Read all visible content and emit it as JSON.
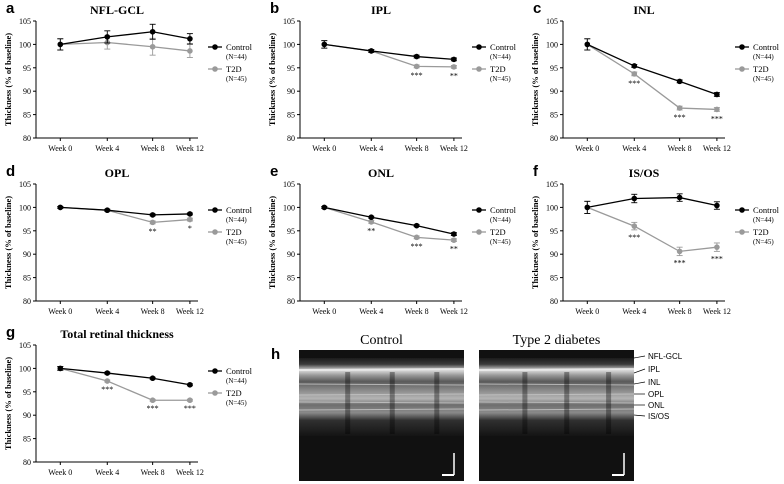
{
  "colors": {
    "control": "#000000",
    "t2d": "#9a9a9a",
    "axis": "#000000"
  },
  "chart_data": [
    {
      "panel": "a",
      "type": "line",
      "title": "NFL-GCL",
      "xlabel": "",
      "ylabel": "Thickness (% of baseline)",
      "categories": [
        "Week 0",
        "Week 4",
        "Week 8",
        "Week 12"
      ],
      "ylim": [
        80,
        105
      ],
      "yticks": [
        80,
        85,
        90,
        95,
        100,
        105
      ],
      "series": [
        {
          "name": "Control",
          "n_label": "(N=44)",
          "values": [
            100,
            101.6,
            102.7,
            101.2
          ],
          "errors": [
            1.2,
            1.3,
            1.6,
            1.1
          ]
        },
        {
          "name": "T2D",
          "n_label": "(N=45)",
          "values": [
            100,
            100.4,
            99.5,
            98.6
          ],
          "errors": [
            1.2,
            1.4,
            1.8,
            1.4
          ]
        }
      ],
      "significance": [
        "",
        "",
        "",
        ""
      ]
    },
    {
      "panel": "b",
      "type": "line",
      "title": "IPL",
      "xlabel": "",
      "ylabel": "Thickness (% of baseline)",
      "categories": [
        "Week 0",
        "Week 4",
        "Week 8",
        "Week 12"
      ],
      "ylim": [
        80,
        105
      ],
      "yticks": [
        80,
        85,
        90,
        95,
        100,
        105
      ],
      "series": [
        {
          "name": "Control",
          "n_label": "(N=44)",
          "values": [
            100,
            98.6,
            97.4,
            96.8
          ],
          "errors": [
            0.8,
            0.3,
            0.3,
            0.3
          ]
        },
        {
          "name": "T2D",
          "n_label": "(N=45)",
          "values": [
            100,
            98.6,
            95.3,
            95.2
          ],
          "errors": [
            0.8,
            0.3,
            0.3,
            0.3
          ]
        }
      ],
      "significance": [
        "",
        "",
        "***",
        "**"
      ]
    },
    {
      "panel": "c",
      "type": "line",
      "title": "INL",
      "xlabel": "",
      "ylabel": "Thickness (% of baseline)",
      "categories": [
        "Week 0",
        "Week 4",
        "Week 8",
        "Week 12"
      ],
      "ylim": [
        80,
        105
      ],
      "yticks": [
        80,
        85,
        90,
        95,
        100,
        105
      ],
      "series": [
        {
          "name": "Control",
          "n_label": "(N=44)",
          "values": [
            100,
            95.4,
            92.1,
            89.3
          ],
          "errors": [
            1.2,
            0.3,
            0.3,
            0.4
          ]
        },
        {
          "name": "T2D",
          "n_label": "(N=45)",
          "values": [
            100,
            93.7,
            86.4,
            86.1
          ],
          "errors": [
            1.2,
            0.4,
            0.4,
            0.4
          ]
        }
      ],
      "significance": [
        "",
        "***",
        "***",
        "***"
      ]
    },
    {
      "panel": "d",
      "type": "line",
      "title": "OPL",
      "xlabel": "",
      "ylabel": "Thickness (% of baseline)",
      "categories": [
        "Week 0",
        "Week 4",
        "Week 8",
        "Week 12"
      ],
      "ylim": [
        80,
        105
      ],
      "yticks": [
        80,
        85,
        90,
        95,
        100,
        105
      ],
      "series": [
        {
          "name": "Control",
          "n_label": "(N=44)",
          "values": [
            100,
            99.4,
            98.4,
            98.6
          ],
          "errors": [
            0.2,
            0.2,
            0.2,
            0.2
          ]
        },
        {
          "name": "T2D",
          "n_label": "(N=45)",
          "values": [
            100,
            99.4,
            96.8,
            97.4
          ],
          "errors": [
            0.2,
            0.2,
            0.3,
            0.3
          ]
        }
      ],
      "significance": [
        "",
        "",
        "**",
        "*"
      ]
    },
    {
      "panel": "e",
      "type": "line",
      "title": "ONL",
      "xlabel": "",
      "ylabel": "Thickness (% of baseline)",
      "categories": [
        "Week 0",
        "Week 4",
        "Week 8",
        "Week 12"
      ],
      "ylim": [
        80,
        105
      ],
      "yticks": [
        80,
        85,
        90,
        95,
        100,
        105
      ],
      "series": [
        {
          "name": "Control",
          "n_label": "(N=44)",
          "values": [
            100,
            97.9,
            96.1,
            94.3
          ],
          "errors": [
            0.2,
            0.2,
            0.2,
            0.3
          ]
        },
        {
          "name": "T2D",
          "n_label": "(N=45)",
          "values": [
            100,
            96.9,
            93.6,
            93.0
          ],
          "errors": [
            0.2,
            0.3,
            0.3,
            0.3
          ]
        }
      ],
      "significance": [
        "",
        "**",
        "***",
        "**"
      ]
    },
    {
      "panel": "f",
      "type": "line",
      "title": "IS/OS",
      "xlabel": "",
      "ylabel": "Thickness (% of baseline)",
      "categories": [
        "Week 0",
        "Week 4",
        "Week 8",
        "Week 12"
      ],
      "ylim": [
        80,
        105
      ],
      "yticks": [
        80,
        85,
        90,
        95,
        100,
        105
      ],
      "series": [
        {
          "name": "Control",
          "n_label": "(N=44)",
          "values": [
            100,
            101.9,
            102.1,
            100.4
          ],
          "errors": [
            1.3,
            0.9,
            0.8,
            0.8
          ]
        },
        {
          "name": "T2D",
          "n_label": "(N=45)",
          "values": [
            100,
            96.0,
            90.6,
            91.5
          ],
          "errors": [
            1.3,
            0.8,
            0.9,
            0.9
          ]
        }
      ],
      "significance": [
        "",
        "***",
        "***",
        "***"
      ]
    },
    {
      "panel": "g",
      "type": "line",
      "title": "Total retinal thickness",
      "xlabel": "",
      "ylabel": "Thickness (% of baseline)",
      "categories": [
        "Week 0",
        "Week 4",
        "Week 8",
        "Week 12"
      ],
      "ylim": [
        80,
        105
      ],
      "yticks": [
        80,
        85,
        90,
        95,
        100,
        105
      ],
      "series": [
        {
          "name": "Control",
          "n_label": "(N=44)",
          "values": [
            100,
            99.0,
            97.9,
            96.5
          ],
          "errors": [
            0.4,
            0.2,
            0.2,
            0.2
          ]
        },
        {
          "name": "T2D",
          "n_label": "(N=45)",
          "values": [
            100,
            97.3,
            93.2,
            93.2
          ],
          "errors": [
            0.4,
            0.2,
            0.2,
            0.2
          ]
        }
      ],
      "significance": [
        "",
        "***",
        "***",
        "***"
      ]
    }
  ],
  "oct_panel": {
    "letter": "h",
    "images": [
      {
        "caption": "Control"
      },
      {
        "caption": "Type 2 diabetes"
      }
    ],
    "layer_labels": [
      "NFL-GCL",
      "IPL",
      "INL",
      "OPL",
      "ONL",
      "IS/OS"
    ]
  }
}
